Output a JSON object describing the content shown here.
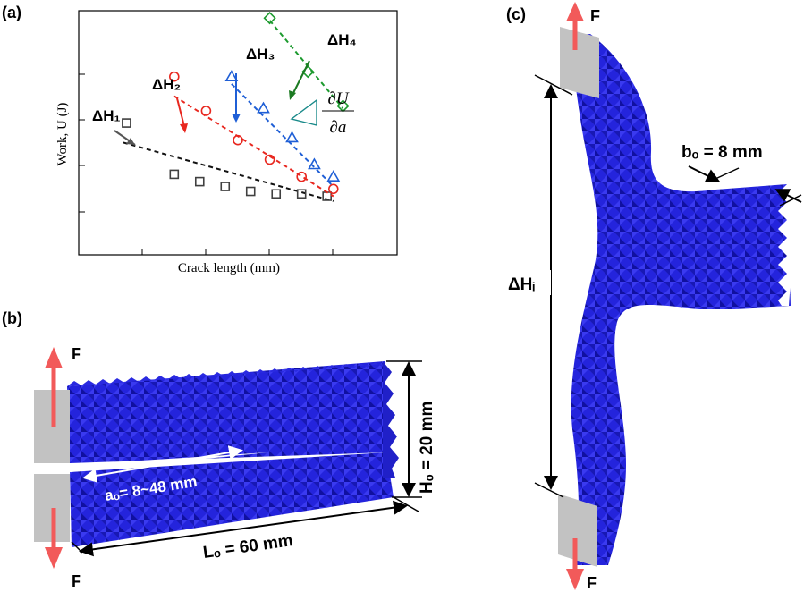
{
  "panels": {
    "a": "(a)",
    "b": "(b)",
    "c": "(c)"
  },
  "chart_data": {
    "type": "scatter",
    "xlabel": "Crack length (mm)",
    "ylabel": "Work, U (J)",
    "xlim": [
      0,
      10
    ],
    "ylim": [
      0,
      10
    ],
    "derivative_label": {
      "num": "∂U",
      "den": "∂a"
    },
    "series": [
      {
        "name": "ΔH₁",
        "marker": "square",
        "color": "#404040",
        "points": [
          [
            1.5,
            5.4
          ],
          [
            3.0,
            3.3
          ],
          [
            3.8,
            3.0
          ],
          [
            4.6,
            2.8
          ],
          [
            5.4,
            2.6
          ],
          [
            6.2,
            2.5
          ],
          [
            7.0,
            2.5
          ],
          [
            7.8,
            2.4
          ]
        ],
        "fit": [
          [
            1.4,
            4.6
          ],
          [
            8.0,
            2.2
          ]
        ]
      },
      {
        "name": "ΔH₂",
        "marker": "circle",
        "color": "#e8271f",
        "points": [
          [
            3.0,
            7.3
          ],
          [
            4.0,
            5.9
          ],
          [
            5.0,
            4.7
          ],
          [
            6.0,
            3.9
          ],
          [
            7.0,
            3.2
          ],
          [
            8.0,
            2.7
          ]
        ],
        "fit": [
          [
            3.0,
            6.5
          ],
          [
            8.0,
            2.4
          ]
        ]
      },
      {
        "name": "ΔH₃",
        "marker": "triangle",
        "color": "#1f5fd6",
        "points": [
          [
            4.8,
            7.3
          ],
          [
            5.8,
            6.0
          ],
          [
            6.7,
            4.8
          ],
          [
            7.4,
            3.7
          ],
          [
            8.0,
            3.2
          ]
        ],
        "fit": [
          [
            4.8,
            7.0
          ],
          [
            8.0,
            2.8
          ]
        ]
      },
      {
        "name": "ΔH₄",
        "marker": "diamond",
        "color": "#1c9a2e",
        "points": [
          [
            6.0,
            9.7
          ],
          [
            7.2,
            7.5
          ],
          [
            8.3,
            6.1
          ]
        ],
        "fit": [
          [
            6.0,
            9.6
          ],
          [
            8.3,
            6.0
          ]
        ]
      }
    ]
  },
  "panel_b": {
    "force": "F",
    "crack": "aₒ= 8~48 mm",
    "length": "Lₒ = 60 mm",
    "height": "Hₒ = 20 mm"
  },
  "panel_c": {
    "force": "F",
    "width": "bₒ = 8 mm",
    "opening": "ΔHᵢ"
  },
  "colors": {
    "lattice": "#2a2ae0",
    "lattice_dark": "#1515a8",
    "grip": "#bfbfbf",
    "arrow": "#f25a5a"
  }
}
